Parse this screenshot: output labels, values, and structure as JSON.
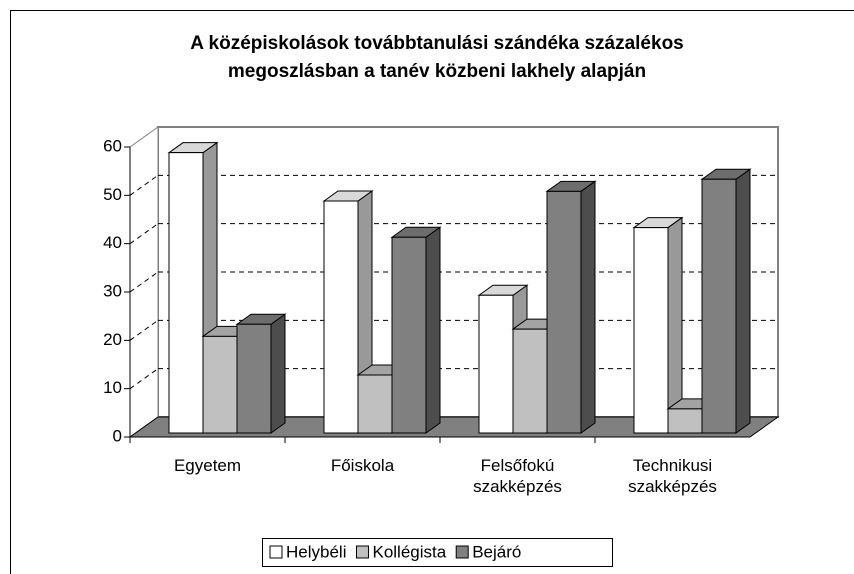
{
  "chart_data": {
    "type": "bar3d",
    "title": [
      "A középiskolások továbbtanulási szándéka százalékos",
      "megoszlásban a tanév közbeni lakhely alapján"
    ],
    "categories": [
      "Egyetem",
      "Főiskola",
      "Felsőfokú szakképzés",
      "Technikusi szakképzés"
    ],
    "series": [
      {
        "name": "Helybéli",
        "color": "#ffffff",
        "values": [
          58,
          48,
          28.5,
          42.5
        ]
      },
      {
        "name": "Kollégista",
        "color": "#c0c0c0",
        "values": [
          20,
          12,
          21.5,
          5
        ]
      },
      {
        "name": "Bejáró",
        "color": "#808080",
        "values": [
          22.5,
          40.5,
          50,
          52.5
        ]
      }
    ],
    "ylim": [
      0,
      60
    ],
    "yticks": [
      0,
      10,
      20,
      30,
      40,
      50,
      60
    ],
    "grid": true,
    "legend": "bottom"
  }
}
